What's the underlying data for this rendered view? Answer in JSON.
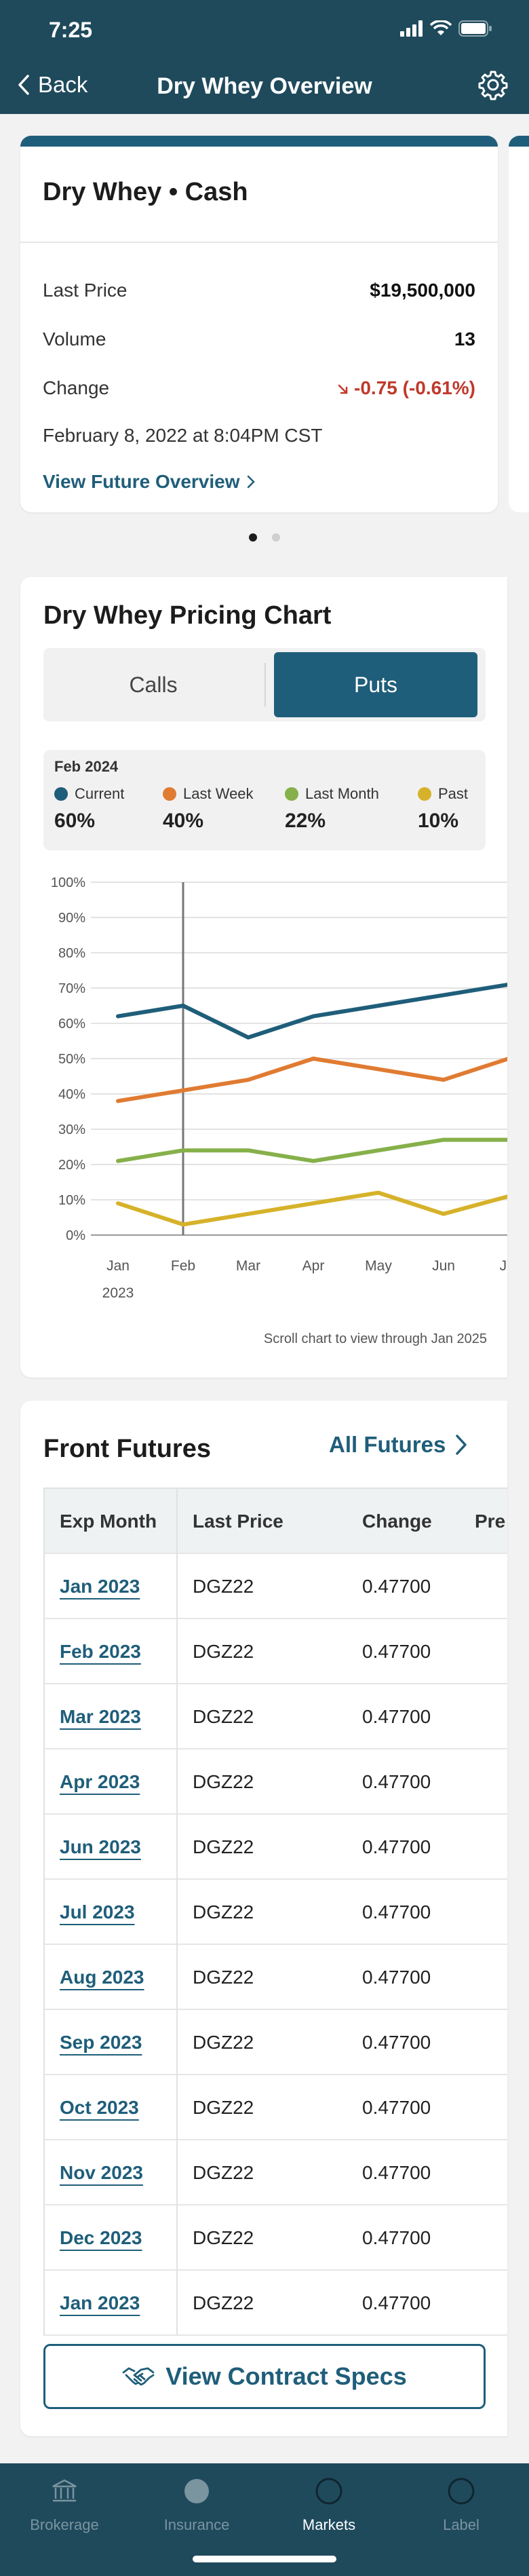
{
  "status_bar": {
    "time": "7:25"
  },
  "nav": {
    "back_label": "Back",
    "title": "Dry Whey Overview"
  },
  "price_card": {
    "title": "Dry Whey • Cash",
    "last_price_label": "Last Price",
    "last_price": "$19,500,000",
    "volume_label": "Volume",
    "volume": "13",
    "change_label": "Change",
    "change": "-0.75 (-0.61%)",
    "timestamp": "February 8, 2022 at 8:04PM CST",
    "link": "View Future Overview"
  },
  "pager": {
    "count": 2,
    "active": 0
  },
  "pricing_chart": {
    "title": "Dry Whey Pricing Chart",
    "segments": [
      "Calls",
      "Puts"
    ],
    "selected_segment": "Puts",
    "legend_title": "Feb 2024",
    "legend": [
      {
        "name": "Current",
        "value": "60%",
        "color": "#1f5e7a"
      },
      {
        "name": "Last Week",
        "value": "40%",
        "color": "#e07b32"
      },
      {
        "name": "Last Month",
        "value": "22%",
        "color": "#86b04a"
      },
      {
        "name": "Past",
        "value": "10%",
        "color": "#d6b22a"
      }
    ],
    "note": "Scroll chart to view through Jan 2025"
  },
  "chart_data": {
    "type": "line",
    "x": [
      "Jan",
      "Feb",
      "Mar",
      "Apr",
      "May",
      "Jun",
      "Jul"
    ],
    "year_label": "2023",
    "y_ticks": [
      "0%",
      "10%",
      "20%",
      "30%",
      "40%",
      "50%",
      "60%",
      "70%",
      "80%",
      "90%",
      "100%"
    ],
    "ylim": [
      0,
      100
    ],
    "cursor": "Feb",
    "series": [
      {
        "name": "Current",
        "color": "#1f5e7a",
        "values": [
          62,
          65,
          56,
          62,
          65,
          68,
          71
        ]
      },
      {
        "name": "Last Week",
        "color": "#e07b32",
        "values": [
          38,
          41,
          44,
          50,
          47,
          44,
          50
        ]
      },
      {
        "name": "Last Month",
        "color": "#86b04a",
        "values": [
          21,
          24,
          24,
          21,
          24,
          27,
          27
        ]
      },
      {
        "name": "Past",
        "color": "#d6b22a",
        "values": [
          9,
          3,
          6,
          9,
          12,
          6,
          11
        ]
      }
    ]
  },
  "futures": {
    "title": "Front Futures",
    "all_link": "All Futures",
    "columns": [
      "Exp Month",
      "Last Price",
      "Change",
      "Pre"
    ],
    "rows": [
      {
        "month": "Jan 2023",
        "price": "DGZ22",
        "change": "0.47700"
      },
      {
        "month": "Feb 2023",
        "price": "DGZ22",
        "change": "0.47700"
      },
      {
        "month": "Mar 2023",
        "price": "DGZ22",
        "change": "0.47700"
      },
      {
        "month": "Apr 2023",
        "price": "DGZ22",
        "change": "0.47700"
      },
      {
        "month": "Jun 2023",
        "price": "DGZ22",
        "change": "0.47700"
      },
      {
        "month": "Jul 2023",
        "price": "DGZ22",
        "change": "0.47700"
      },
      {
        "month": "Aug 2023",
        "price": "DGZ22",
        "change": "0.47700"
      },
      {
        "month": "Sep 2023",
        "price": "DGZ22",
        "change": "0.47700"
      },
      {
        "month": "Oct 2023",
        "price": "DGZ22",
        "change": "0.47700"
      },
      {
        "month": "Nov 2023",
        "price": "DGZ22",
        "change": "0.47700"
      },
      {
        "month": "Dec 2023",
        "price": "DGZ22",
        "change": "0.47700"
      },
      {
        "month": "Jan 2023",
        "price": "DGZ22",
        "change": "0.47700"
      }
    ],
    "specs_button": "View Contract Specs"
  },
  "tabs": [
    {
      "label": "Brokerage",
      "icon": "bank-icon",
      "active": false
    },
    {
      "label": "Insurance",
      "icon": "circle-icon",
      "active": false
    },
    {
      "label": "Markets",
      "icon": "circle-icon",
      "active": true
    },
    {
      "label": "Label",
      "icon": "circle-icon",
      "active": false
    }
  ]
}
